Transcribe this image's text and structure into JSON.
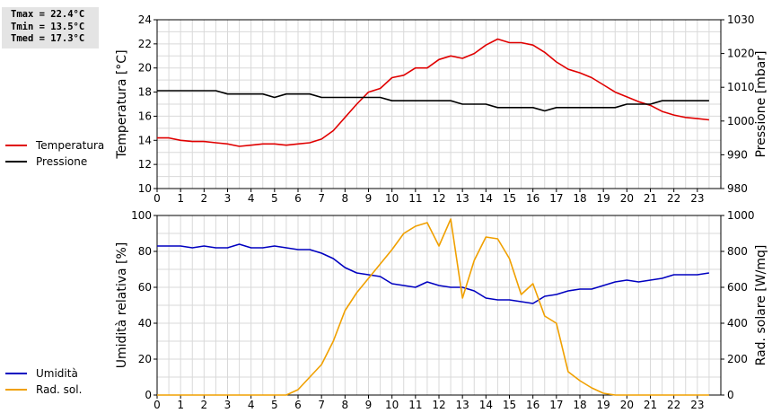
{
  "stats": {
    "tmax": "Tmax = 22.4°C",
    "tmin": "Tmin = 13.5°C",
    "tmed": "Tmed = 17.3°C"
  },
  "legend_top": [
    {
      "label": "Temperatura",
      "color": "#e00000"
    },
    {
      "label": "Pressione",
      "color": "#000000"
    }
  ],
  "legend_bottom": [
    {
      "label": "Umidità",
      "color": "#0000c0"
    },
    {
      "label": "Rad. sol.",
      "color": "#f0a000"
    }
  ],
  "chart_data": [
    {
      "type": "line",
      "x_ticks": [
        "0",
        "1",
        "2",
        "3",
        "4",
        "5",
        "6",
        "7",
        "8",
        "9",
        "10",
        "11",
        "12",
        "13",
        "14",
        "15",
        "16",
        "17",
        "18",
        "19",
        "20",
        "21",
        "22",
        "23"
      ],
      "xlim": [
        0,
        24
      ],
      "ylabel_left": "Temperatura [°C]",
      "ylabel_right": "Pressione [mbar]",
      "ylim_left": [
        10,
        24
      ],
      "ylim_right": [
        980,
        1030
      ],
      "yticks_left": [
        "10",
        "12",
        "14",
        "16",
        "18",
        "20",
        "22",
        "24"
      ],
      "yticks_right": [
        "980",
        "990",
        "1000",
        "1010",
        "1020",
        "1030"
      ],
      "grid": true,
      "series": [
        {
          "name": "Temperatura",
          "color": "#e00000",
          "axis": "left",
          "x": [
            0,
            0.5,
            1,
            1.5,
            2,
            2.5,
            3,
            3.5,
            4,
            4.5,
            5,
            5.5,
            6,
            6.5,
            7,
            7.5,
            8,
            8.5,
            9,
            9.5,
            10,
            10.5,
            11,
            11.5,
            12,
            12.5,
            13,
            13.5,
            14,
            14.5,
            15,
            15.5,
            16,
            16.5,
            17,
            17.5,
            18,
            18.5,
            19,
            19.5,
            20,
            20.5,
            21,
            21.5,
            22,
            22.5,
            23,
            23.5
          ],
          "y": [
            14.2,
            14.2,
            14.0,
            13.9,
            13.9,
            13.8,
            13.7,
            13.5,
            13.6,
            13.7,
            13.7,
            13.6,
            13.7,
            13.8,
            14.1,
            14.8,
            15.9,
            17.0,
            18.0,
            18.3,
            19.2,
            19.4,
            20.0,
            20.0,
            20.7,
            21.0,
            20.8,
            21.2,
            21.9,
            22.4,
            22.1,
            22.1,
            21.9,
            21.3,
            20.5,
            19.9,
            19.6,
            19.2,
            18.6,
            18.0,
            17.6,
            17.2,
            16.9,
            16.4,
            16.1,
            15.9,
            15.8,
            15.7
          ]
        },
        {
          "name": "Pressione",
          "color": "#000000",
          "axis": "right",
          "x": [
            0,
            1,
            2,
            2.5,
            3,
            3.5,
            4,
            4.5,
            5,
            5.5,
            6,
            6.5,
            7,
            7.5,
            8,
            8.5,
            9,
            9.5,
            10,
            12.5,
            13,
            14,
            14.5,
            16,
            16.5,
            17,
            19.5,
            20,
            21,
            21.5,
            23.5
          ],
          "y": [
            1009,
            1009,
            1009,
            1009,
            1008,
            1008,
            1008,
            1008,
            1007,
            1008,
            1008,
            1008,
            1007,
            1007,
            1007,
            1007,
            1007,
            1007,
            1006,
            1006,
            1005,
            1005,
            1004,
            1004,
            1003,
            1004,
            1004,
            1005,
            1005,
            1006,
            1006
          ]
        }
      ]
    },
    {
      "type": "line",
      "x_ticks": [
        "0",
        "1",
        "2",
        "3",
        "4",
        "5",
        "6",
        "7",
        "8",
        "9",
        "10",
        "11",
        "12",
        "13",
        "14",
        "15",
        "16",
        "17",
        "18",
        "19",
        "20",
        "21",
        "22",
        "23"
      ],
      "xlim": [
        0,
        24
      ],
      "ylabel_left": "Umidità relativa [%]",
      "ylabel_right": "Rad. solare [W/mq]",
      "ylim_left": [
        0,
        100
      ],
      "ylim_right": [
        0,
        1000
      ],
      "yticks_left": [
        "0",
        "20",
        "40",
        "60",
        "80",
        "100"
      ],
      "yticks_right": [
        "0",
        "200",
        "400",
        "600",
        "800",
        "1000"
      ],
      "grid": true,
      "series": [
        {
          "name": "Umidità",
          "color": "#0000c0",
          "axis": "left",
          "x": [
            0,
            0.5,
            1,
            1.5,
            2,
            2.5,
            3,
            3.5,
            4,
            4.5,
            5,
            5.5,
            6,
            6.5,
            7,
            7.5,
            8,
            8.5,
            9,
            9.5,
            10,
            10.5,
            11,
            11.5,
            12,
            12.5,
            13,
            13.5,
            14,
            14.5,
            15,
            15.5,
            16,
            16.5,
            17,
            17.5,
            18,
            18.5,
            19,
            19.5,
            20,
            20.5,
            21,
            21.5,
            22,
            22.5,
            23,
            23.5
          ],
          "y": [
            83,
            83,
            83,
            82,
            83,
            82,
            82,
            84,
            82,
            82,
            83,
            82,
            81,
            81,
            79,
            76,
            71,
            68,
            67,
            66,
            62,
            61,
            60,
            63,
            61,
            60,
            60,
            58,
            54,
            53,
            53,
            52,
            51,
            55,
            56,
            58,
            59,
            59,
            61,
            63,
            64,
            63,
            64,
            65,
            67,
            67,
            67,
            68
          ]
        },
        {
          "name": "Rad. sol.",
          "color": "#f0a000",
          "axis": "right",
          "x": [
            0,
            0.5,
            1,
            1.5,
            2,
            2.5,
            3,
            3.5,
            4,
            4.5,
            5,
            5.5,
            6,
            6.5,
            7,
            7.5,
            8,
            8.5,
            9,
            9.5,
            10,
            10.5,
            11,
            11.5,
            12,
            12.5,
            13,
            13.5,
            14,
            14.5,
            15,
            15.5,
            16,
            16.5,
            17,
            17.5,
            18,
            18.5,
            19,
            19.5,
            20,
            20.5,
            21,
            21.5,
            22,
            22.5,
            23,
            23.5
          ],
          "y": [
            0,
            0,
            0,
            0,
            0,
            0,
            0,
            0,
            0,
            0,
            0,
            0,
            30,
            100,
            170,
            300,
            470,
            570,
            650,
            730,
            810,
            900,
            940,
            960,
            830,
            980,
            540,
            750,
            880,
            870,
            760,
            560,
            620,
            440,
            400,
            130,
            80,
            40,
            10,
            0,
            0,
            0,
            0,
            0,
            0,
            0,
            0,
            0
          ]
        }
      ]
    }
  ]
}
